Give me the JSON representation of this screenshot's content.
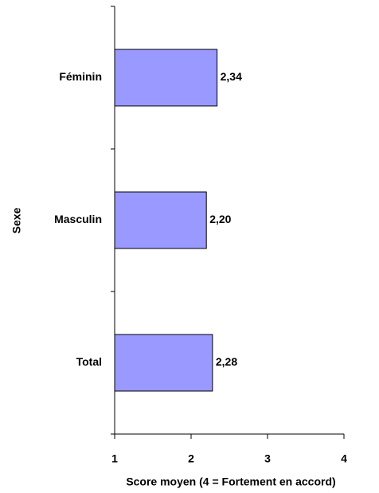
{
  "chart_data": {
    "type": "bar",
    "orientation": "horizontal",
    "x_label": "Score moyen (4 = Fortement en accord)",
    "y_label": "Sexe",
    "categories": [
      "Féminin",
      "Masculin",
      "Total"
    ],
    "values": [
      2.34,
      2.2,
      2.28
    ],
    "value_labels": [
      "2,34",
      "2,20",
      "2,28"
    ],
    "color": "#9999ff",
    "xlim": [
      1,
      4
    ],
    "xticks": [
      1,
      2,
      3,
      4
    ],
    "grid": false
  }
}
